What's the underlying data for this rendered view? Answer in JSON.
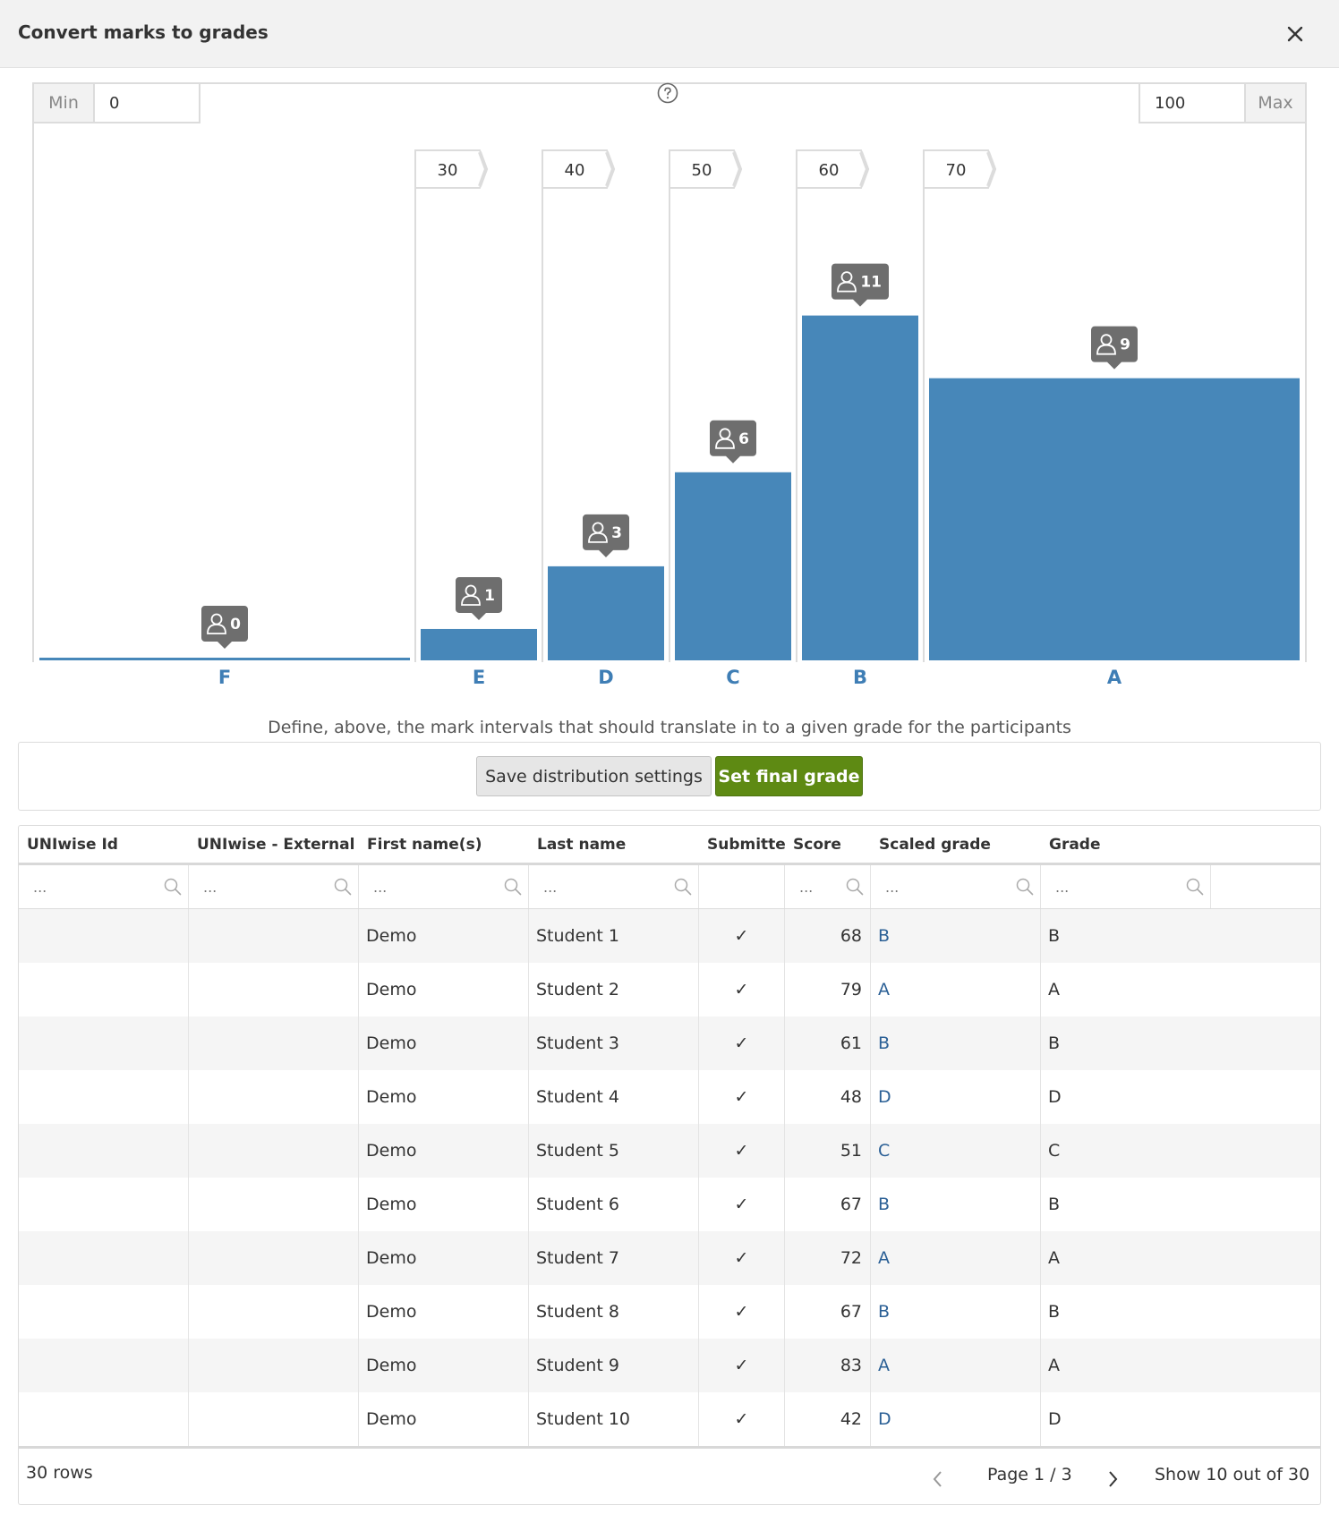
{
  "dialog": {
    "title": "Convert marks to grades",
    "close_icon": "close-icon"
  },
  "range": {
    "min_label": "Min",
    "min_value": "0",
    "max_label": "Max",
    "max_value": "100"
  },
  "help_icon": "question-circle-icon",
  "chart_data": {
    "type": "bar",
    "categories": [
      "F",
      "E",
      "D",
      "C",
      "B",
      "A"
    ],
    "values": [
      0,
      1,
      3,
      6,
      11,
      9
    ],
    "thresholds": [
      "30",
      "40",
      "50",
      "60",
      "70"
    ],
    "x_range": [
      0,
      100
    ],
    "count_icon": "user-icon",
    "bar_color": "#4787b9",
    "badge_color": "#6e6e6e"
  },
  "hint": "Define, above, the mark intervals that should translate in to a given grade for the participants",
  "actions": {
    "save_label": "Save distribution settings",
    "final_label": "Set final grade"
  },
  "table": {
    "columns": [
      "UNIwise Id",
      "UNIwise - External user id",
      "First name(s)",
      "Last name",
      "Submitted",
      "Score",
      "Scaled grade",
      "Grade"
    ],
    "filter_placeholder": "...",
    "rows": [
      {
        "id": "",
        "ext": "",
        "first": "Demo",
        "last": "Student 1",
        "submitted": "✓",
        "score": "68",
        "scaled": "B",
        "grade": "B"
      },
      {
        "id": "",
        "ext": "",
        "first": "Demo",
        "last": "Student 2",
        "submitted": "✓",
        "score": "79",
        "scaled": "A",
        "grade": "A"
      },
      {
        "id": "",
        "ext": "",
        "first": "Demo",
        "last": "Student 3",
        "submitted": "✓",
        "score": "61",
        "scaled": "B",
        "grade": "B"
      },
      {
        "id": "",
        "ext": "",
        "first": "Demo",
        "last": "Student 4",
        "submitted": "✓",
        "score": "48",
        "scaled": "D",
        "grade": "D"
      },
      {
        "id": "",
        "ext": "",
        "first": "Demo",
        "last": "Student 5",
        "submitted": "✓",
        "score": "51",
        "scaled": "C",
        "grade": "C"
      },
      {
        "id": "",
        "ext": "",
        "first": "Demo",
        "last": "Student 6",
        "submitted": "✓",
        "score": "67",
        "scaled": "B",
        "grade": "B"
      },
      {
        "id": "",
        "ext": "",
        "first": "Demo",
        "last": "Student 7",
        "submitted": "✓",
        "score": "72",
        "scaled": "A",
        "grade": "A"
      },
      {
        "id": "",
        "ext": "",
        "first": "Demo",
        "last": "Student 8",
        "submitted": "✓",
        "score": "67",
        "scaled": "B",
        "grade": "B"
      },
      {
        "id": "",
        "ext": "",
        "first": "Demo",
        "last": "Student 9",
        "submitted": "✓",
        "score": "83",
        "scaled": "A",
        "grade": "A"
      },
      {
        "id": "",
        "ext": "",
        "first": "Demo",
        "last": "Student 10",
        "submitted": "✓",
        "score": "42",
        "scaled": "D",
        "grade": "D"
      }
    ],
    "row_count": "30 rows",
    "page_label": "Page 1 / 3",
    "show_label": "Show 10 out of 30",
    "prev_icon": "chevron-left-icon",
    "next_icon": "chevron-right-icon"
  }
}
